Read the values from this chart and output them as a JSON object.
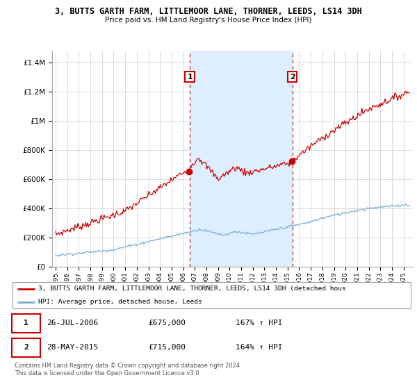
{
  "title": "3, BUTTS GARTH FARM, LITTLEMOOR LANE, THORNER, LEEDS, LS14 3DH",
  "subtitle": "Price paid vs. HM Land Registry's House Price Index (HPI)",
  "ylabel_ticks": [
    "£0",
    "£200K",
    "£400K",
    "£600K",
    "£800K",
    "£1M",
    "£1.2M",
    "£1.4M"
  ],
  "ytick_values": [
    0,
    200000,
    400000,
    600000,
    800000,
    1000000,
    1200000,
    1400000
  ],
  "ylim": [
    0,
    1480000
  ],
  "xlim_start": 1994.7,
  "xlim_end": 2025.8,
  "xticks": [
    1995,
    1996,
    1997,
    1998,
    1999,
    2000,
    2001,
    2002,
    2003,
    2004,
    2005,
    2006,
    2007,
    2008,
    2009,
    2010,
    2011,
    2012,
    2013,
    2014,
    2015,
    2016,
    2017,
    2018,
    2019,
    2020,
    2021,
    2022,
    2023,
    2024,
    2025
  ],
  "sale1_date": 2006.57,
  "sale1_price": 675000,
  "sale1_label": "1",
  "sale2_date": 2015.41,
  "sale2_price": 715000,
  "sale2_label": "2",
  "red_color": "#cc0000",
  "blue_color": "#7aadd4",
  "shade_color": "#ddeeff",
  "legend_line1": "3, BUTTS GARTH FARM, LITTLEMOOR LANE, THORNER, LEEDS, LS14 3DH (detached hous",
  "legend_line2": "HPI: Average price, detached house, Leeds",
  "note_line1": "Contains HM Land Registry data © Crown copyright and database right 2024.",
  "note_line2": "This data is licensed under the Open Government Licence v3.0.",
  "table_row1_label": "1",
  "table_row1_date": "26-JUL-2006",
  "table_row1_price": "£675,000",
  "table_row1_hpi": "167% ↑ HPI",
  "table_row2_label": "2",
  "table_row2_date": "28-MAY-2015",
  "table_row2_price": "£715,000",
  "table_row2_hpi": "164% ↑ HPI"
}
